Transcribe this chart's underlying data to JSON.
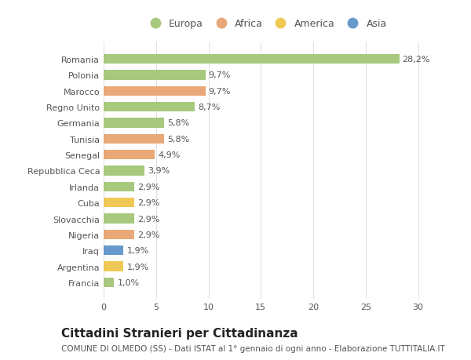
{
  "categories": [
    "Francia",
    "Argentina",
    "Iraq",
    "Nigeria",
    "Slovacchia",
    "Cuba",
    "Irlanda",
    "Repubblica Ceca",
    "Senegal",
    "Tunisia",
    "Germania",
    "Regno Unito",
    "Marocco",
    "Polonia",
    "Romania"
  ],
  "values": [
    1.0,
    1.9,
    1.9,
    2.9,
    2.9,
    2.9,
    2.9,
    3.9,
    4.9,
    5.8,
    5.8,
    8.7,
    9.7,
    9.7,
    28.2
  ],
  "labels": [
    "1,0%",
    "1,9%",
    "1,9%",
    "2,9%",
    "2,9%",
    "2,9%",
    "2,9%",
    "3,9%",
    "4,9%",
    "5,8%",
    "5,8%",
    "8,7%",
    "9,7%",
    "9,7%",
    "28,2%"
  ],
  "continent_colors": {
    "Europa": "#a8c87e",
    "Africa": "#e8a878",
    "America": "#f0c855",
    "Asia": "#6699cc"
  },
  "bar_colors": [
    "#a8c87e",
    "#f0c855",
    "#6699cc",
    "#e8a878",
    "#a8c87e",
    "#f0c855",
    "#a8c87e",
    "#a8c87e",
    "#e8a878",
    "#e8a878",
    "#a8c87e",
    "#a8c87e",
    "#e8a878",
    "#a8c87e",
    "#a8c87e"
  ],
  "title": "Cittadini Stranieri per Cittadinanza",
  "subtitle": "COMUNE DI OLMEDO (SS) - Dati ISTAT al 1° gennaio di ogni anno - Elaborazione TUTTITALIA.IT",
  "xlim": [
    0,
    31
  ],
  "xticks": [
    0,
    5,
    10,
    15,
    20,
    25,
    30
  ],
  "legend_items": [
    "Europa",
    "Africa",
    "America",
    "Asia"
  ],
  "background_color": "#ffffff",
  "grid_color": "#e0e0e0",
  "bar_height": 0.6,
  "label_fontsize": 8,
  "tick_fontsize": 8,
  "title_fontsize": 11,
  "subtitle_fontsize": 7.5,
  "text_color": "#555555"
}
